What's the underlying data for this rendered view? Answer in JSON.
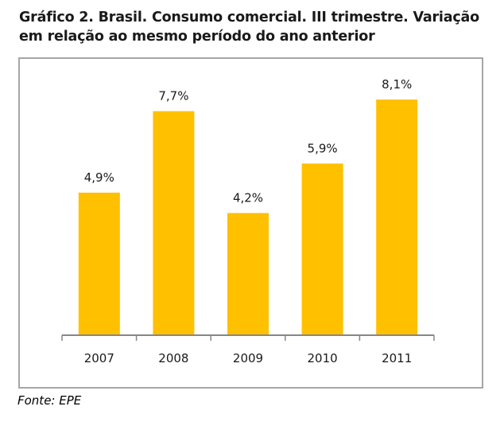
{
  "title_line1": "Gráfico 2. Brasil. Consumo comercial. III trimestre. Variação",
  "title_line2": "em relação ao mesmo período do ano anterior",
  "source": "Fonte: EPE",
  "colors": {
    "bar": "#FFC000",
    "axis": "#878787",
    "frame": "#A6A6A6",
    "text": "#1A1A1A"
  },
  "chart_data": {
    "type": "bar",
    "title": "Gráfico 2. Brasil. Consumo comercial. III trimestre. Variação em relação ao mesmo período do ano anterior",
    "categories": [
      "2007",
      "2008",
      "2009",
      "2010",
      "2011"
    ],
    "values": [
      4.9,
      7.7,
      4.2,
      5.9,
      8.1
    ],
    "data_labels": [
      "4,9%",
      "7,7%",
      "4,2%",
      "5,9%",
      "8,1%"
    ],
    "xlabel": "",
    "ylabel": "",
    "ylim": [
      0,
      9
    ],
    "grid": false,
    "legend": "none",
    "unit": "%"
  }
}
